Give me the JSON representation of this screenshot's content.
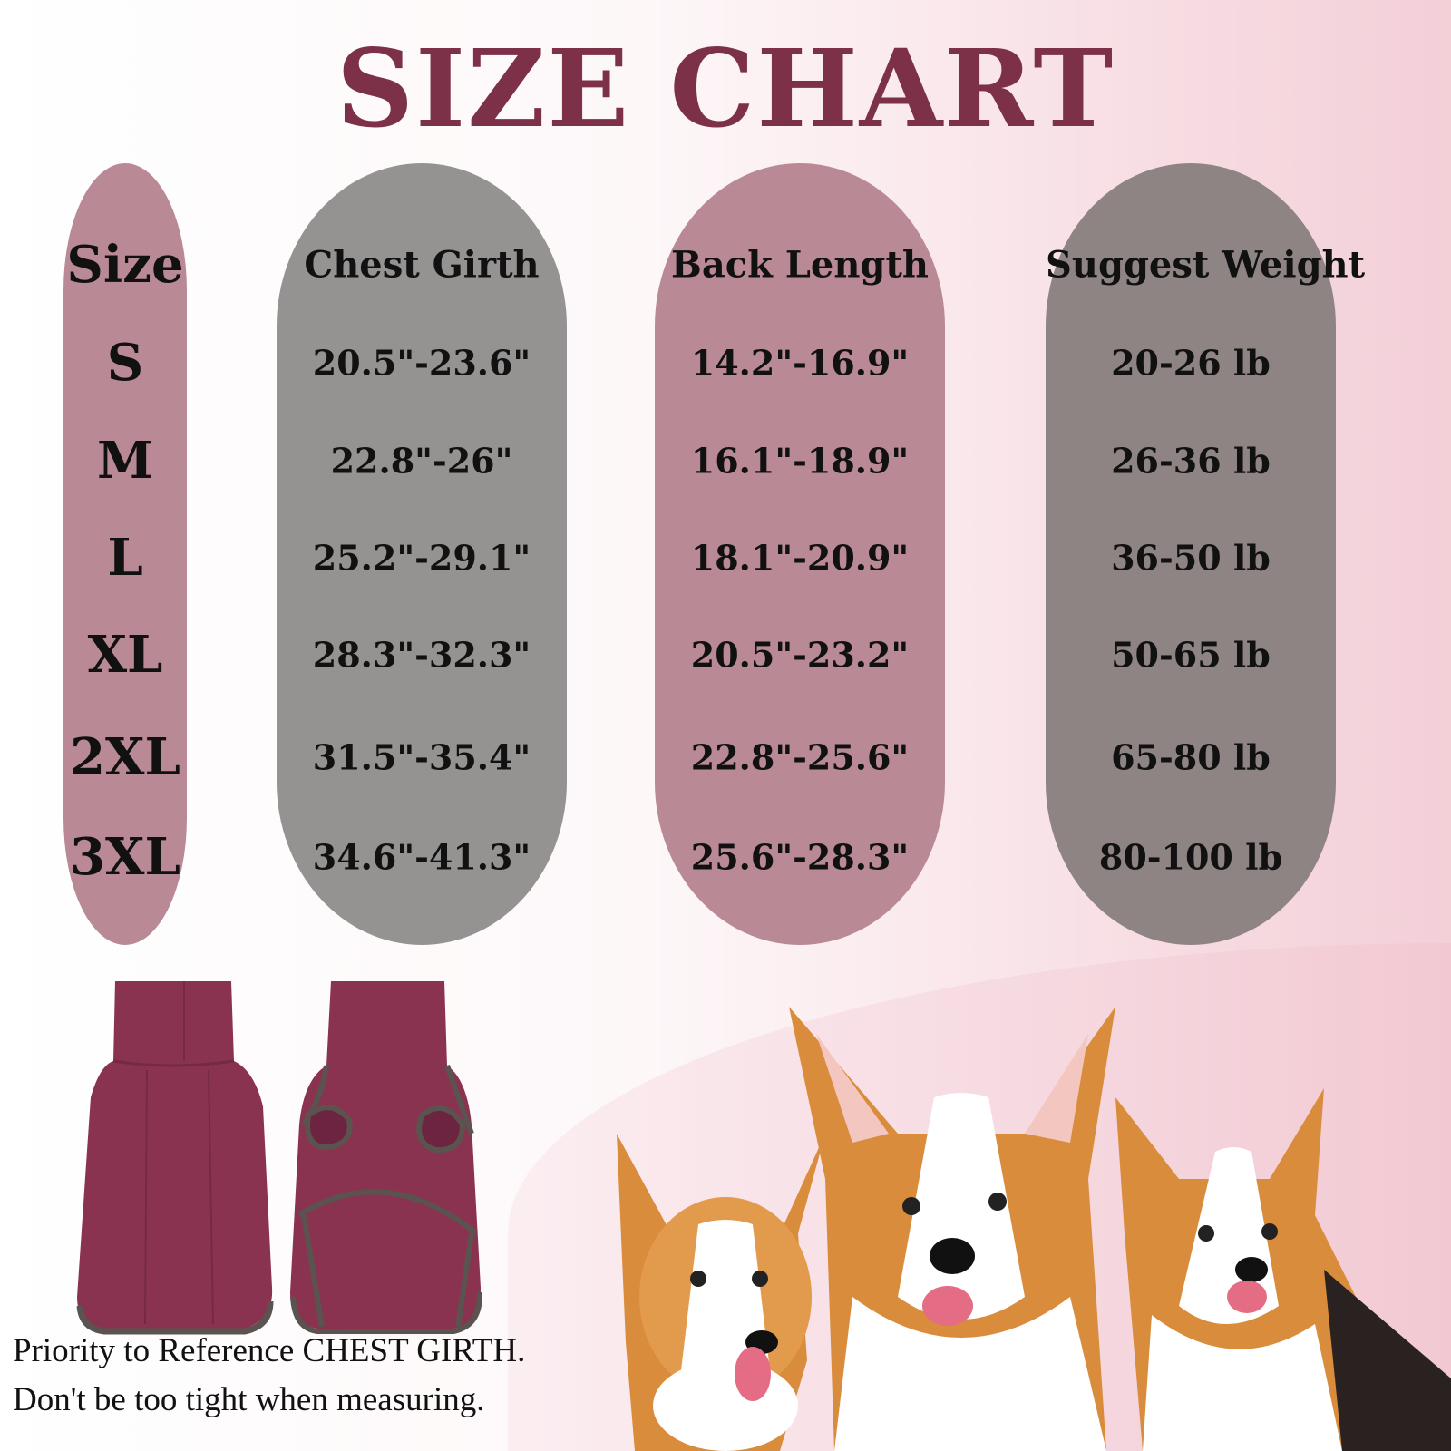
{
  "title": "SIZE CHART",
  "colors": {
    "title": "#7d3148",
    "pink_column": "#b98a96",
    "gray_column": "#959391",
    "mauve_column": "#8f8484",
    "garment": "#8a3350",
    "trim": "#5a5350"
  },
  "columns": [
    {
      "header": "Size",
      "values": [
        "S",
        "M",
        "L",
        "XL",
        "2XL",
        "3XL"
      ]
    },
    {
      "header": "Chest Girth",
      "values": [
        "20.5\"-23.6\"",
        "22.8\"-26\"",
        "25.2\"-29.1\"",
        "28.3\"-32.3\"",
        "31.5\"-35.4\"",
        "34.6\"-41.3\""
      ]
    },
    {
      "header": "Back Length",
      "values": [
        "14.2\"-16.9\"",
        "16.1\"-18.9\"",
        "18.1\"-20.9\"",
        "20.5\"-23.2\"",
        "22.8\"-25.6\"",
        "25.6\"-28.3\""
      ]
    },
    {
      "header": "Suggest Weight",
      "values": [
        "20-26 lb",
        "26-36 lb",
        "36-50 lb",
        "50-65 lb",
        "65-80 lb",
        "80-100 lb"
      ]
    }
  ],
  "notes": [
    "Priority to Reference CHEST GIRTH.",
    "Don't be too tight when measuring."
  ]
}
